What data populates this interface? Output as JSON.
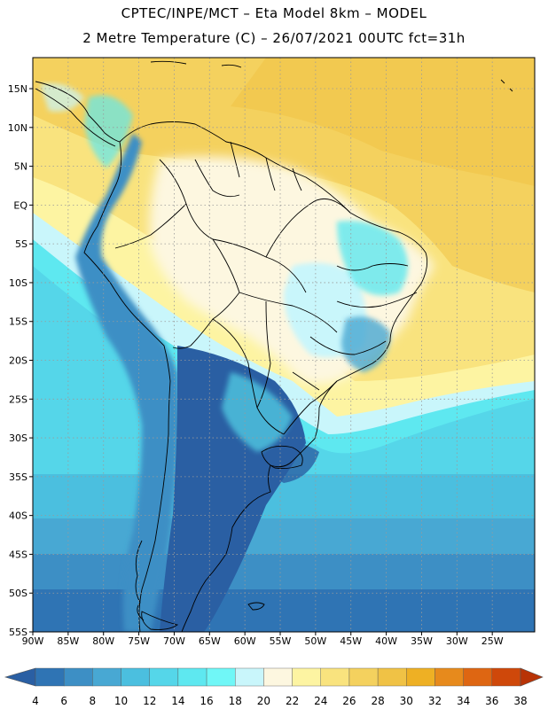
{
  "header": {
    "line1": "CPTEC/INPE/MCT –  Eta Model 8km – MODEL",
    "line2": "2 Metre Temperature (C) – 26/07/2021 00UTC fct=31h"
  },
  "map": {
    "lon_range": [
      -90,
      -19
    ],
    "lat_range": [
      -55,
      19
    ],
    "lon_ticks": [
      {
        "value": -90,
        "label": "90W"
      },
      {
        "value": -85,
        "label": "85W"
      },
      {
        "value": -80,
        "label": "80W"
      },
      {
        "value": -75,
        "label": "75W"
      },
      {
        "value": -70,
        "label": "70W"
      },
      {
        "value": -65,
        "label": "65W"
      },
      {
        "value": -60,
        "label": "60W"
      },
      {
        "value": -55,
        "label": "55W"
      },
      {
        "value": -50,
        "label": "50W"
      },
      {
        "value": -45,
        "label": "45W"
      },
      {
        "value": -40,
        "label": "40W"
      },
      {
        "value": -35,
        "label": "35W"
      },
      {
        "value": -30,
        "label": "30W"
      },
      {
        "value": -25,
        "label": "25W"
      }
    ],
    "lat_ticks": [
      {
        "value": 15,
        "label": "15N"
      },
      {
        "value": 10,
        "label": "10N"
      },
      {
        "value": 5,
        "label": "5N"
      },
      {
        "value": 0,
        "label": "EQ"
      },
      {
        "value": -5,
        "label": "5S"
      },
      {
        "value": -10,
        "label": "10S"
      },
      {
        "value": -15,
        "label": "15S"
      },
      {
        "value": -20,
        "label": "20S"
      },
      {
        "value": -25,
        "label": "25S"
      },
      {
        "value": -30,
        "label": "30S"
      },
      {
        "value": -35,
        "label": "35S"
      },
      {
        "value": -40,
        "label": "40S"
      },
      {
        "value": -45,
        "label": "45S"
      },
      {
        "value": -50,
        "label": "50S"
      },
      {
        "value": -55,
        "label": "55S"
      }
    ],
    "grid": "dotted"
  },
  "colorbar": {
    "labels": [
      "4",
      "6",
      "8",
      "10",
      "12",
      "14",
      "16",
      "18",
      "20",
      "22",
      "24",
      "26",
      "28",
      "30",
      "32",
      "34",
      "36",
      "38"
    ],
    "colors": [
      "#2a5fa3",
      "#2f74b4",
      "#3d8fc5",
      "#48a8d3",
      "#4bbfdf",
      "#55d6e9",
      "#5ee8f0",
      "#70f7f7",
      "#c9f6fb",
      "#fdf7e0",
      "#fdf4a2",
      "#f9e37e",
      "#f4d15e",
      "#f0c245",
      "#eeb024",
      "#e78a1c",
      "#de6612",
      "#cf480a",
      "#b83306"
    ]
  }
}
